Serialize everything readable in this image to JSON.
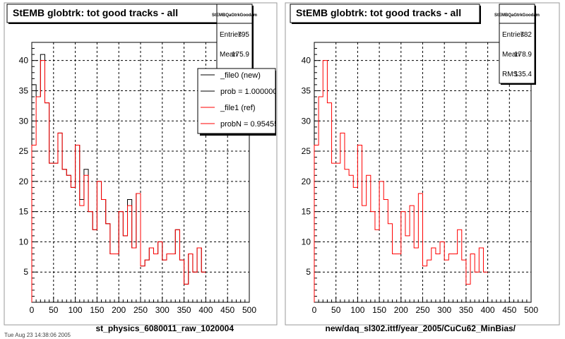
{
  "chart_data": [
    {
      "type": "histogram",
      "title": "StEMB globtrk: tot good tracks - all",
      "xlabel": "st_physics_6080011_raw_1020004",
      "ylabel": "",
      "xlim": [
        0,
        500
      ],
      "ylim": [
        0,
        43
      ],
      "grid": true,
      "x_ticks": [
        0,
        50,
        100,
        150,
        200,
        250,
        300,
        350,
        400,
        450,
        500
      ],
      "y_ticks": [
        5,
        10,
        15,
        20,
        25,
        30,
        35,
        40
      ],
      "bin_width": 10,
      "stats": {
        "name": "StEMBQaGtrkGoodam",
        "entries_label": "Entries",
        "entries": "795",
        "mean_label": "Mean",
        "mean": "175.9"
      },
      "legend": {
        "position": "top-right",
        "items": [
          {
            "label": "_file0 (new)",
            "color": "#000000"
          },
          {
            "label": "prob = 1.000000",
            "color": "#000000"
          },
          {
            "label": "_file1 (ref)",
            "color": "#ff0000"
          },
          {
            "label": "probN = 0.954550",
            "color": "#ff0000"
          }
        ]
      },
      "series": [
        {
          "name": "_file0 (new)",
          "color": "#000000",
          "values": [
            36,
            34,
            41,
            33,
            23,
            23,
            28,
            22,
            21,
            19,
            26,
            17,
            22,
            15,
            12,
            20,
            17,
            13,
            8,
            8,
            15,
            11,
            17,
            9,
            18,
            6,
            7,
            9,
            8,
            10,
            7,
            8,
            8,
            12,
            7,
            3,
            8,
            5,
            9,
            5
          ]
        },
        {
          "name": "_file1 (ref)",
          "color": "#ff0000",
          "values": [
            26,
            34,
            40,
            33,
            23,
            23,
            28,
            22,
            21,
            19,
            26,
            16,
            21,
            15,
            12,
            20,
            17,
            13,
            8,
            8,
            15,
            11,
            16,
            9,
            18,
            6,
            7,
            9,
            8,
            10,
            7,
            8,
            8,
            12,
            7,
            3,
            8,
            5,
            9,
            5
          ]
        }
      ]
    },
    {
      "type": "histogram",
      "title": "StEMB globtrk: tot good tracks - all",
      "xlabel": "new/daq_sl302.ittf/year_2005/CuCu62_MinBias/",
      "ylabel": "",
      "xlim": [
        0,
        500
      ],
      "ylim": [
        0,
        43
      ],
      "grid": true,
      "x_ticks": [
        0,
        50,
        100,
        150,
        200,
        250,
        300,
        350,
        400,
        450,
        500
      ],
      "y_ticks": [
        5,
        10,
        15,
        20,
        25,
        30,
        35,
        40
      ],
      "bin_width": 10,
      "stats": {
        "name": "StEMBQaGtrkGoodam",
        "entries_label": "Entries",
        "entries": "782",
        "mean_label": "Mean",
        "mean": "178.9",
        "rms_label": "RMS",
        "rms": "135.4"
      },
      "series": [
        {
          "name": "",
          "color": "#ff0000",
          "values": [
            26,
            34,
            40,
            33,
            23,
            23,
            28,
            22,
            21,
            19,
            26,
            16,
            21,
            15,
            12,
            20,
            17,
            13,
            8,
            8,
            15,
            11,
            16,
            9,
            18,
            6,
            7,
            9,
            8,
            10,
            7,
            8,
            8,
            12,
            7,
            3,
            8,
            5,
            9,
            5
          ]
        }
      ]
    }
  ],
  "footer": "Tue Aug 23 14:38:06 2005"
}
